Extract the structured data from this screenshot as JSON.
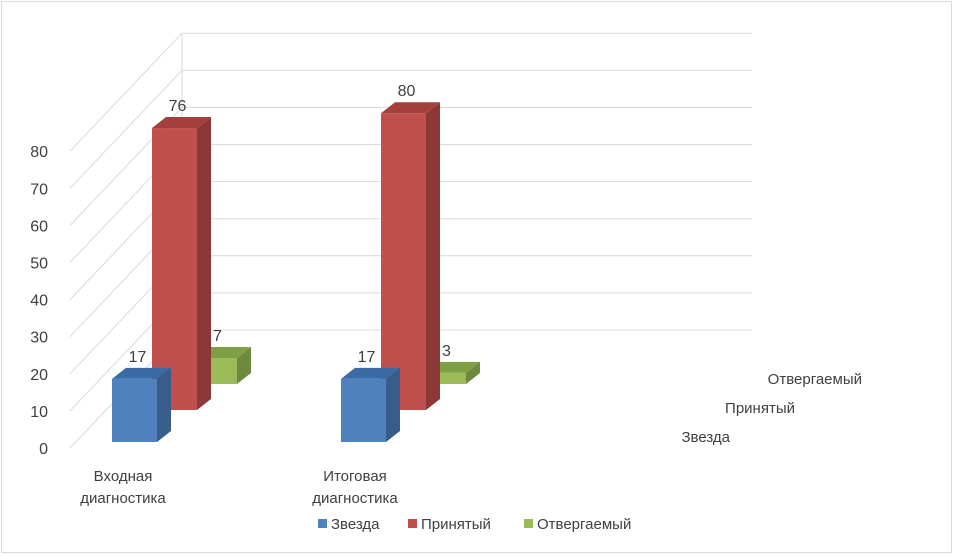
{
  "chart_data": {
    "type": "bar",
    "subtype": "3d-column",
    "title": "",
    "xlabel": "",
    "ylabel": "",
    "ylim": [
      0,
      80
    ],
    "ytick_step": 10,
    "grid": true,
    "legend_position": "bottom",
    "categories": [
      "Входная диагностика",
      "Итоговая диагностика"
    ],
    "category_lines": [
      [
        "Входная",
        "диагностика"
      ],
      [
        "Итоговая",
        "диагностика"
      ]
    ],
    "series": [
      {
        "name": "Звезда",
        "values": [
          17,
          17
        ],
        "color": "#4F81BD",
        "side": "#385D8A",
        "top": "#3A6BA5"
      },
      {
        "name": "Принятый",
        "values": [
          76,
          80
        ],
        "color": "#C0504D",
        "side": "#8C3836",
        "top": "#A3403D"
      },
      {
        "name": "Отвергаемый",
        "values": [
          7,
          3
        ],
        "color": "#9BBB59",
        "side": "#6F8A3E",
        "top": "#7F9F45"
      }
    ],
    "depth_labels": [
      "Звезда",
      "Принятый",
      "Отвергаемый"
    ],
    "data_labels": true
  }
}
